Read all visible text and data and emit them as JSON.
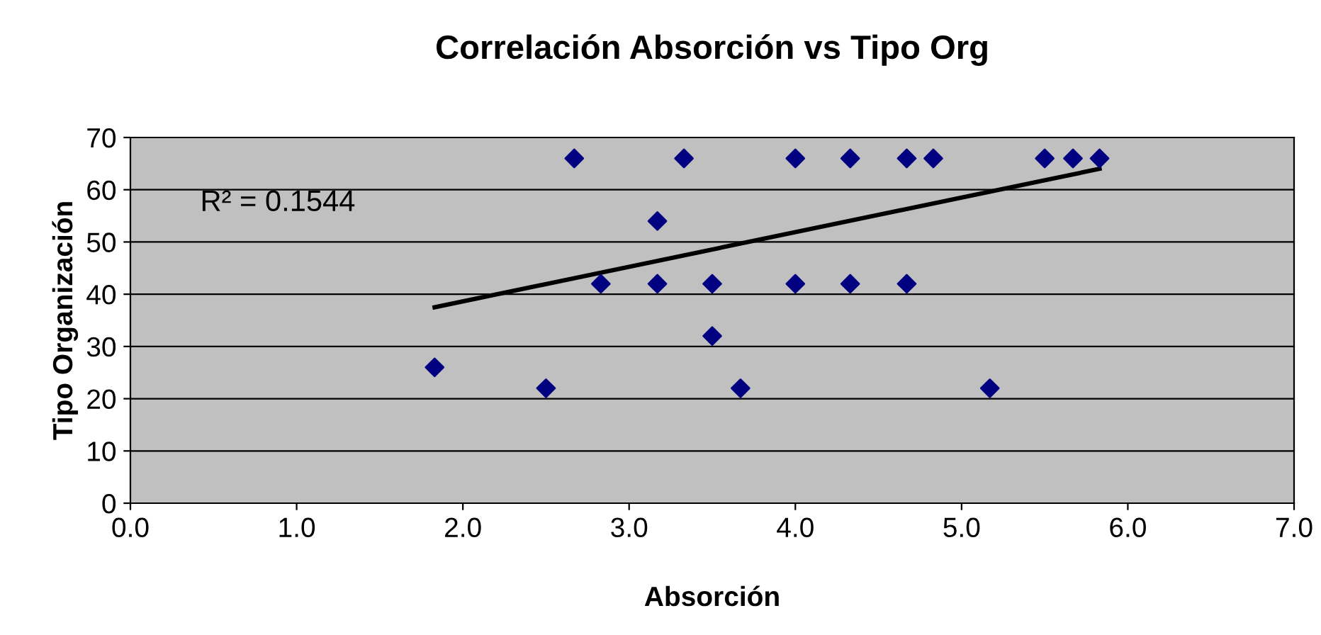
{
  "chart_data": {
    "type": "scatter",
    "title": "Correlación Absorción vs Tipo Org",
    "xlabel": "Absorción",
    "ylabel": "Tipo Organización",
    "xlim": [
      0,
      7
    ],
    "xticks": [
      {
        "value": 0,
        "label": "0.0"
      },
      {
        "value": 1,
        "label": "1.0"
      },
      {
        "value": 2,
        "label": "2.0"
      },
      {
        "value": 3,
        "label": "3.0"
      },
      {
        "value": 4,
        "label": "4.0"
      },
      {
        "value": 5,
        "label": "5.0"
      },
      {
        "value": 6,
        "label": "6.0"
      },
      {
        "value": 7,
        "label": "7.0"
      }
    ],
    "ylim": [
      0,
      70
    ],
    "yticks": [
      0,
      10,
      20,
      30,
      40,
      50,
      60,
      70
    ],
    "grid": "y",
    "legend": false,
    "series": [
      {
        "marker": "diamond",
        "color": "#000080",
        "x": [
          1.83,
          2.5,
          2.67,
          2.83,
          3.17,
          3.17,
          3.33,
          3.5,
          3.5,
          3.67,
          4.0,
          4.0,
          4.33,
          4.33,
          4.67,
          4.67,
          4.83,
          5.17,
          5.5,
          5.67,
          5.83
        ],
        "values": [
          26,
          22,
          66,
          42,
          42,
          54,
          66,
          42,
          32,
          22,
          66,
          42,
          66,
          42,
          66,
          42,
          66,
          22,
          66,
          66,
          66
        ]
      },
      {
        "type": "line",
        "marker": "none",
        "color": "#000000",
        "x": [
          1.83,
          5.83
        ],
        "values": [
          37.5,
          64
        ]
      }
    ],
    "annotations": [
      "R² = 0.1544"
    ]
  }
}
